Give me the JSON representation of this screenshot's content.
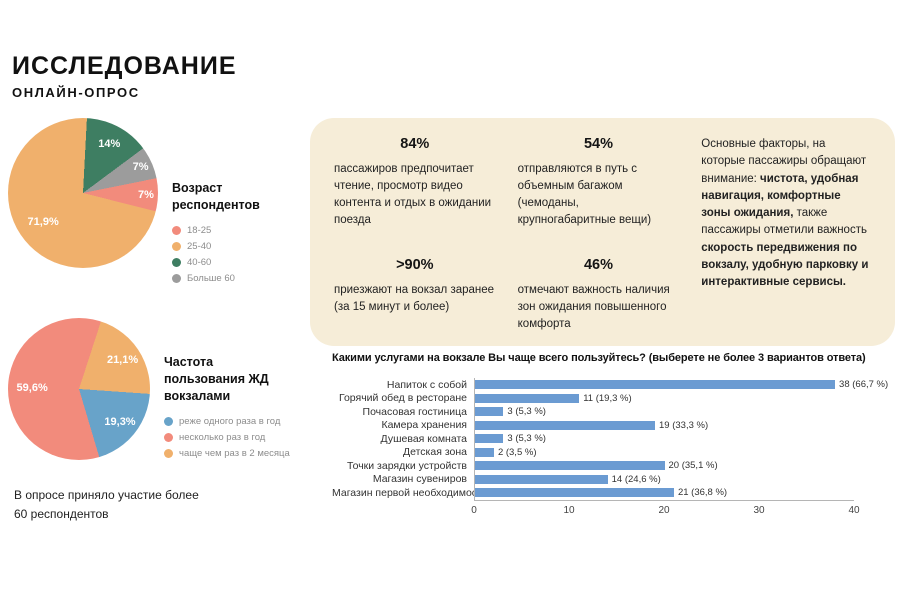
{
  "header": {
    "title": "ИССЛЕДОВАНИЕ",
    "subtitle": "ОНЛАЙН-ОПРОС"
  },
  "footnote": "В опросе приняло участие более 60 респондентов",
  "chart_data": [
    {
      "id": "age_pie",
      "type": "pie",
      "title": "Возраст респондентов",
      "start_angle": 3,
      "segments": [
        {
          "label": "40-60",
          "value": 14,
          "display": "14%",
          "color": "#3e7e62"
        },
        {
          "label": "Больше 60",
          "value": 7,
          "display": "7%",
          "color": "#9c9c9c"
        },
        {
          "label": "18-25",
          "value": 7.1,
          "display": "7%",
          "color": "#f28b7c"
        },
        {
          "label": "25-40",
          "value": 71.9,
          "display": "71,9%",
          "color": "#f0b06c"
        }
      ],
      "legend": [
        {
          "label": "18-25",
          "color": "#f28b7c"
        },
        {
          "label": "25-40",
          "color": "#f0b06c"
        },
        {
          "label": "40-60",
          "color": "#3e7e62"
        },
        {
          "label": "Больше 60",
          "color": "#9c9c9c"
        }
      ]
    },
    {
      "id": "frequency_pie",
      "type": "pie",
      "title": "Частота пользования ЖД вокзалами",
      "start_angle": 18,
      "segments": [
        {
          "label": "чаще чем раз в 2 месяца",
          "value": 21.1,
          "display": "21,1%",
          "color": "#f0b06c"
        },
        {
          "label": "реже одного раза в год",
          "value": 19.3,
          "display": "19,3%",
          "color": "#68a3c9"
        },
        {
          "label": "несколько раз в год",
          "value": 59.6,
          "display": "59,6%",
          "color": "#f28b7c"
        }
      ],
      "legend": [
        {
          "label": "реже одного раза в год",
          "color": "#68a3c9"
        },
        {
          "label": "несколько раз в год",
          "color": "#f28b7c"
        },
        {
          "label": "чаще чем раз в 2 месяца",
          "color": "#f0b06c"
        }
      ]
    },
    {
      "id": "services_bar",
      "type": "bar",
      "orientation": "horizontal",
      "title": "Какими услугами на вокзале Вы чаще всего пользуйтесь? (выберете не более 3 вариантов ответа)",
      "categories": [
        "Напиток с собой",
        "Горячий обед в ресторане",
        "Почасовая гостиница",
        "Камера хранения",
        "Душевая комната",
        "Детская зона",
        "Точки зарядки устройств",
        "Магазин сувениров",
        "Магазин первой необходимости"
      ],
      "values": [
        38,
        11,
        3,
        19,
        3,
        2,
        20,
        14,
        21
      ],
      "value_labels": [
        "38 (66,7 %)",
        "11 (19,3 %)",
        "3 (5,3 %)",
        "19 (33,3 %)",
        "3 (5,3 %)",
        "2 (3,5 %)",
        "20 (35,1 %)",
        "14 (24,6 %)",
        "21 (36,8 %)"
      ],
      "xlim": [
        0,
        40
      ],
      "x_ticks": [
        0,
        10,
        20,
        30,
        40
      ],
      "bar_color": "#6b9bd2",
      "grid": false,
      "legend_position": "none"
    }
  ],
  "stats_card": {
    "background": "#f6edd8",
    "stats": [
      {
        "value": "84%",
        "text": "пассажиров предпочитает чтение, просмотр видео контента и отдых в ожидании поезда"
      },
      {
        "value": ">90%",
        "text": "приезжают на вокзал заранее (за 15 минут и более)"
      },
      {
        "value": "54%",
        "text": "отправляются в путь с объемным багажом (чемоданы, крупногабаритные вещи)"
      },
      {
        "value": "46%",
        "text": "отмечают важность наличия зон ожидания повышенного комфорта"
      }
    ],
    "factors_runs": [
      {
        "text": "Основные факторы, на которые пассажиры обращают внимание: ",
        "bold": false
      },
      {
        "text": "чистота, удобная навигация, комфортные зоны ожидания, ",
        "bold": true
      },
      {
        "text": "также пассажиры отметили важность ",
        "bold": false
      },
      {
        "text": "скорость передвижения по вокзалу, удобную парковку и интерактивные сервисы.",
        "bold": true
      }
    ]
  }
}
